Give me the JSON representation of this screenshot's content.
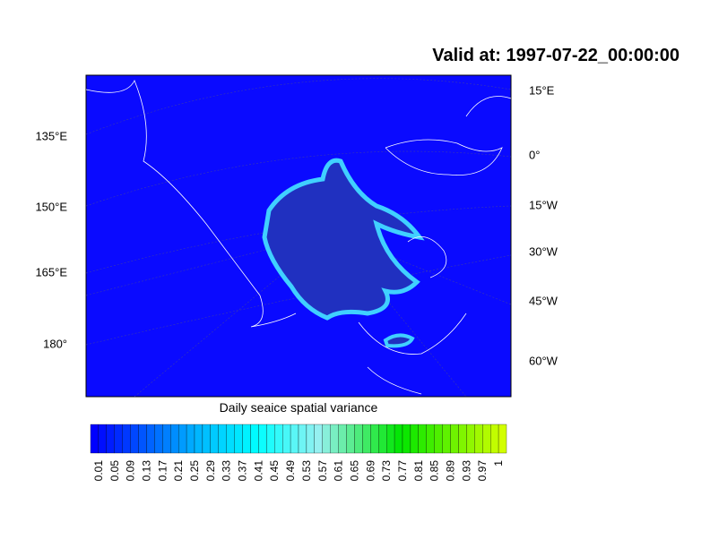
{
  "title": "Valid at: 1997-07-22_00:00:00",
  "left_labels": [
    "135°E",
    "150°E",
    "165°E",
    "180°"
  ],
  "right_labels": [
    "15°E",
    "0°",
    "15°W",
    "30°W",
    "45°W",
    "60°W"
  ],
  "colorbar": {
    "title": "Daily seaice spatial variance",
    "labels": [
      "0.01",
      "0.05",
      "0.09",
      "0.13",
      "0.17",
      "0.21",
      "0.25",
      "0.29",
      "0.33",
      "0.37",
      "0.41",
      "0.45",
      "0.49",
      "0.53",
      "0.57",
      "0.61",
      "0.65",
      "0.69",
      "0.73",
      "0.77",
      "0.81",
      "0.85",
      "0.89",
      "0.93",
      "0.97",
      "1"
    ]
  }
}
